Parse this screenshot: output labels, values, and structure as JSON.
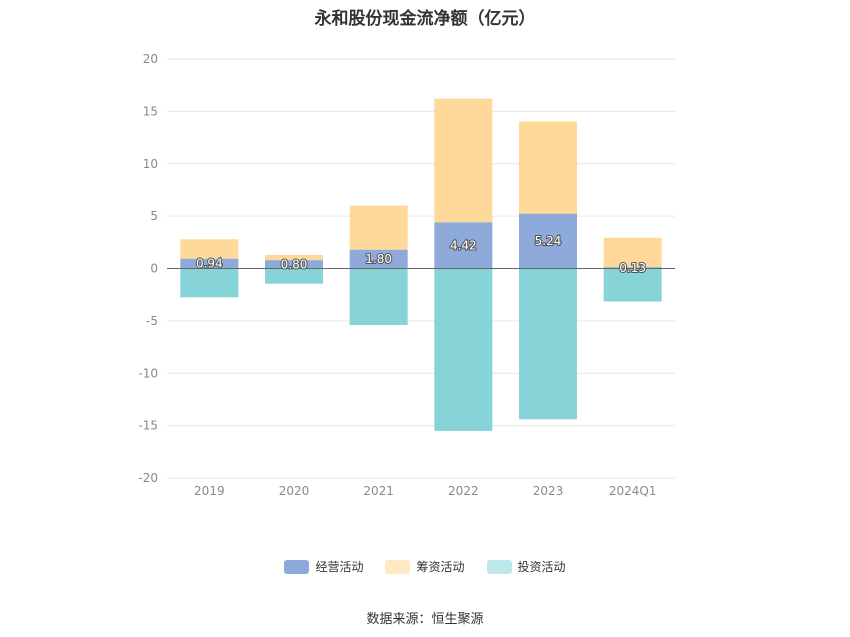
{
  "chart_data": {
    "type": "bar",
    "stacked": true,
    "title": "永和股份现金流净额（亿元）",
    "categories": [
      "2019",
      "2020",
      "2021",
      "2022",
      "2023",
      "2024Q1"
    ],
    "ylim": [
      -20,
      20
    ],
    "yticks": [
      20,
      15,
      10,
      5,
      0,
      -5,
      -10,
      -15,
      -20
    ],
    "grid": true,
    "legend_position": "bottom",
    "series": [
      {
        "name": "经营活动",
        "color": "#8eaadb",
        "values": [
          0.94,
          0.8,
          1.8,
          4.42,
          5.24,
          0.13
        ],
        "labels": [
          "0.94",
          "0.80",
          "1.80",
          "4.42",
          "5.24",
          "0.13"
        ]
      },
      {
        "name": "筹资活动",
        "color": "#ffd999",
        "values": [
          1.85,
          0.5,
          4.2,
          11.8,
          8.8,
          2.8
        ]
      },
      {
        "name": "投资活动",
        "color": "#86d3d8",
        "values": [
          -2.75,
          -1.45,
          -5.4,
          -15.5,
          -14.4,
          -3.15
        ]
      }
    ],
    "legend_colors": [
      "#8eaadb",
      "#ffe9c2",
      "#bce8ea"
    ]
  },
  "source": "数据来源：恒生聚源"
}
